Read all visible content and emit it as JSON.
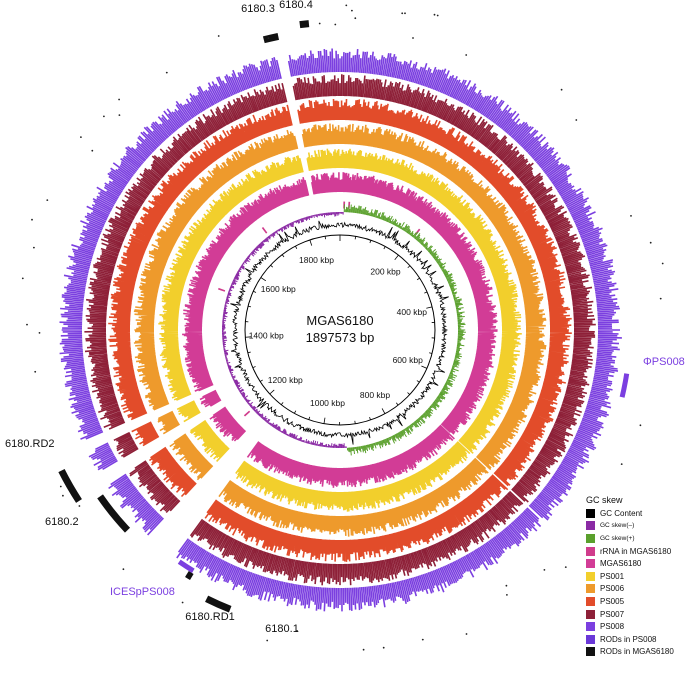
{
  "genome": {
    "name": "MGAS6180",
    "length_label": "1897573 bp",
    "length_bp": 1897573
  },
  "axis": {
    "tick_labels": [
      "200 kbp",
      "400 kbp",
      "600 kbp",
      "800 kbp",
      "1000 kbp",
      "1200 kbp",
      "1400 kbp",
      "1600 kbp",
      "1800 kbp"
    ],
    "tick_values_kbp": [
      200,
      400,
      600,
      800,
      1000,
      1200,
      1400,
      1600,
      1800
    ]
  },
  "rings": [
    {
      "id": "ps008",
      "label": "PS008",
      "color": "#7b3fe0"
    },
    {
      "id": "ps007",
      "label": "PS007",
      "color": "#8e2038"
    },
    {
      "id": "ps005",
      "label": "PS005",
      "color": "#e24c2a"
    },
    {
      "id": "ps006",
      "label": "PS006",
      "color": "#ee9a2c"
    },
    {
      "id": "ps001",
      "label": "PS001",
      "color": "#f2cf2c"
    },
    {
      "id": "mgas6180",
      "label": "MGAS6180",
      "color": "#d23c96"
    },
    {
      "id": "rrna",
      "label": "rRNA in MGAS6180",
      "color": "#d03c8c"
    },
    {
      "id": "gc_skew",
      "label": "GC skew",
      "color": "#888888"
    },
    {
      "id": "gc_content",
      "label": "GC Content",
      "color": "#000000"
    }
  ],
  "legend": {
    "header": "GC skew",
    "items": [
      {
        "label": "GC Content",
        "color": "#000000",
        "small": false
      },
      {
        "label": "GC skew(–)",
        "color": "#8a2aa4",
        "small": true
      },
      {
        "label": "GC skew(+)",
        "color": "#5aa02c",
        "small": true
      },
      {
        "label": "rRNA in MGAS6180",
        "color": "#d03c8c",
        "small": false
      },
      {
        "label": "MGAS6180",
        "color": "#d23c96",
        "small": false
      },
      {
        "label": "PS001",
        "color": "#f2cf2c",
        "small": false
      },
      {
        "label": "PS006",
        "color": "#ee9a2c",
        "small": false
      },
      {
        "label": "PS005",
        "color": "#e24c2a",
        "small": false
      },
      {
        "label": "PS007",
        "color": "#8e2038",
        "small": false
      },
      {
        "label": "PS008",
        "color": "#7b3fe0",
        "small": false
      },
      {
        "label": "RODs in PS008",
        "color": "#6a38d8",
        "small": false
      },
      {
        "label": "RODs in MGAS6180",
        "color": "#111111",
        "small": false
      }
    ]
  },
  "regions": [
    {
      "label": "6180.3",
      "kind": "ROD in MGAS6180",
      "start_kbp": 1820,
      "end_kbp": 1835
    },
    {
      "label": "6180.4",
      "kind": "ROD in MGAS6180",
      "start_kbp": 1858,
      "end_kbp": 1867
    },
    {
      "label": "ΦPS008",
      "kind": "ROD in PS008",
      "start_kbp": 520,
      "end_kbp": 545
    },
    {
      "label": "6180.1",
      "kind": "ROD in MGAS6180",
      "start_kbp": 1062,
      "end_kbp": 1088
    },
    {
      "label": "6180.RD1",
      "kind": "ROD in MGAS6180",
      "start_kbp": 1112,
      "end_kbp": 1118
    },
    {
      "label": "ICESpPS008",
      "kind": "ROD in PS008",
      "start_kbp": 1114,
      "end_kbp": 1132
    },
    {
      "label": "6180.2",
      "kind": "ROD in MGAS6180",
      "start_kbp": 1195,
      "end_kbp": 1240
    },
    {
      "label": "6180.RD2",
      "kind": "ROD in MGAS6180",
      "start_kbp": 1248,
      "end_kbp": 1282
    }
  ],
  "colors": {
    "gc_skew_negative": "#8a2aa4",
    "gc_skew_positive": "#5aa02c",
    "label_purple": "#7b3fe0",
    "label_black": "#111111"
  }
}
